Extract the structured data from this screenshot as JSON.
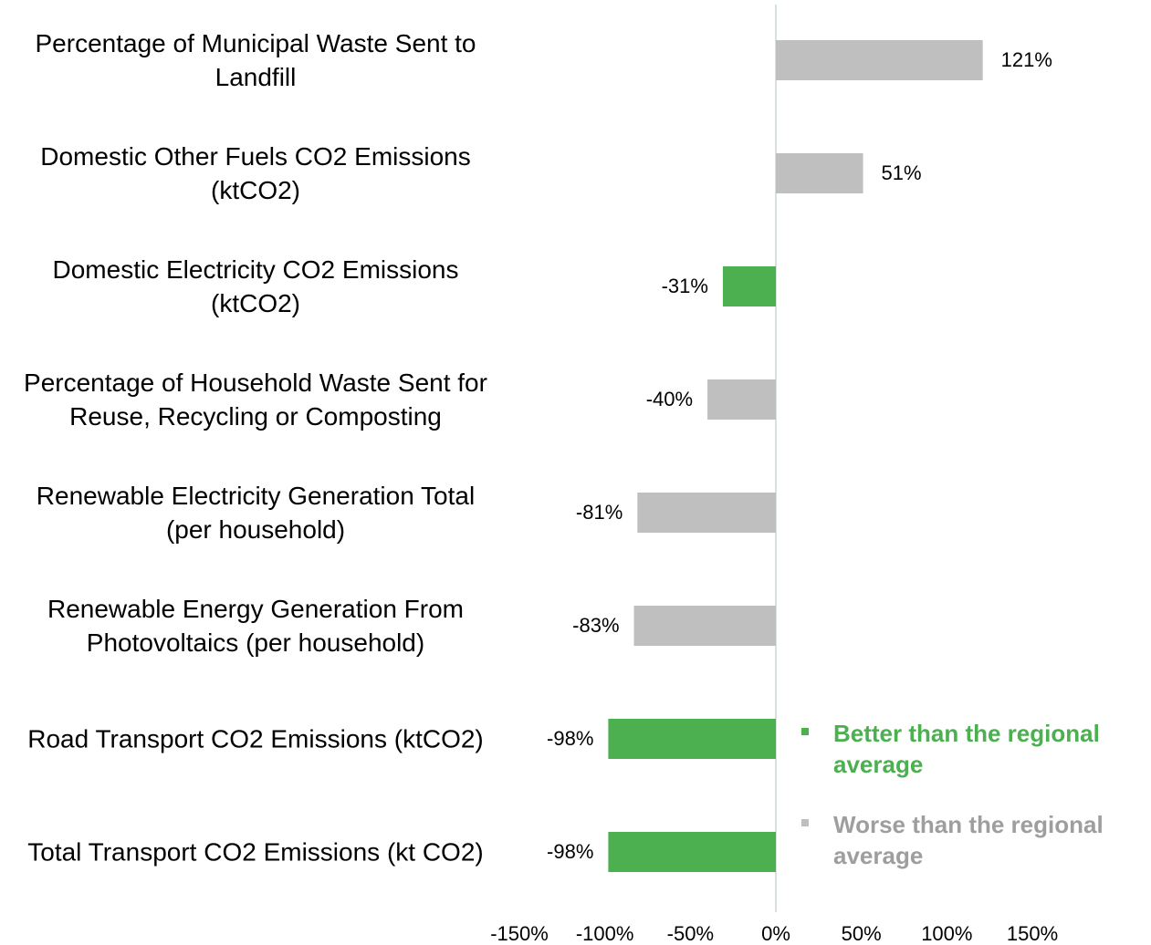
{
  "chart_data": {
    "type": "hbar",
    "categories": [
      "Percentage of Municipal Waste Sent to Landfill",
      "Domestic Other Fuels CO2 Emissions (ktCO2)",
      "Domestic Electricity CO2 Emissions (ktCO2)",
      "Percentage of Household Waste Sent for Reuse, Recycling or Composting",
      "Renewable Electricity Generation Total (per household)",
      "Renewable Energy Generation From Photovoltaics (per household)",
      "Road Transport CO2 Emissions (ktCO2)",
      "Total Transport CO2 Emissions (kt CO2)"
    ],
    "series": [
      {
        "name": "Better than the regional average",
        "color": "#4caf50",
        "values": [
          null,
          null,
          -31,
          null,
          null,
          null,
          -98,
          -98
        ],
        "value_labels": [
          null,
          null,
          "-31%",
          null,
          null,
          null,
          "-98%",
          "-98%"
        ]
      },
      {
        "name": "Worse than the regional average",
        "color": "#bfbfbf",
        "values": [
          121,
          51,
          null,
          -40,
          -81,
          -83,
          null,
          null
        ],
        "value_labels": [
          "121%",
          "51%",
          null,
          "-40%",
          "-81%",
          "-83%",
          null,
          null
        ]
      }
    ],
    "xlim": [
      -150,
      150
    ],
    "xticks": [
      {
        "value": -150,
        "label": "-150%"
      },
      {
        "value": -100,
        "label": "-100%"
      },
      {
        "value": -50,
        "label": "-50%"
      },
      {
        "value": 0,
        "label": "0%"
      },
      {
        "value": 50,
        "label": "50%"
      },
      {
        "value": 100,
        "label": "100%"
      },
      {
        "value": 150,
        "label": "150%"
      }
    ],
    "legend": "bottom-right"
  }
}
